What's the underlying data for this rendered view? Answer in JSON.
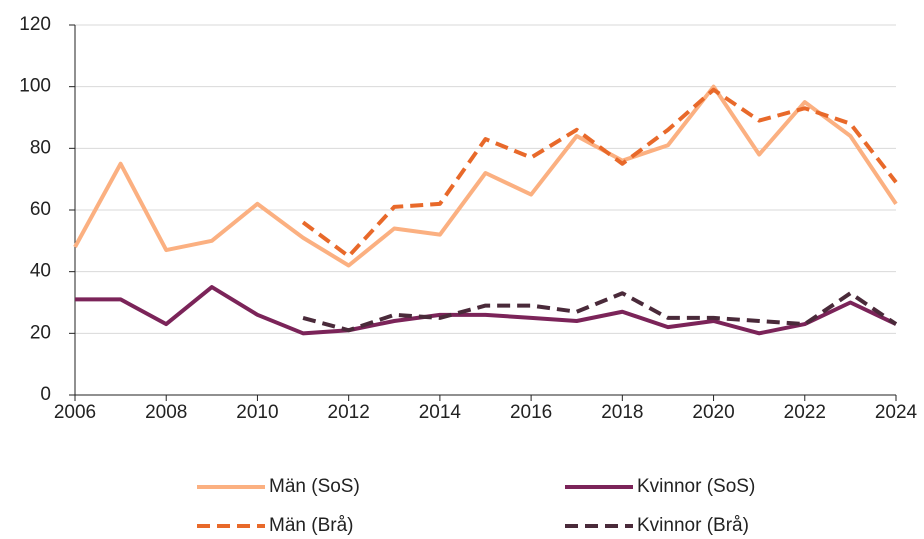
{
  "chart_data": {
    "type": "line",
    "x": [
      2006,
      2007,
      2008,
      2009,
      2010,
      2011,
      2012,
      2013,
      2014,
      2015,
      2016,
      2017,
      2018,
      2019,
      2020,
      2021,
      2022,
      2023,
      2024
    ],
    "series": [
      {
        "name": "Män (SoS)",
        "color": "#fbb081",
        "dashed": false,
        "values": [
          48,
          75,
          47,
          50,
          62,
          51,
          42,
          54,
          52,
          72,
          65,
          84,
          76,
          81,
          100,
          78,
          95,
          84,
          62
        ]
      },
      {
        "name": "Kvinnor (SoS)",
        "color": "#7b2459",
        "dashed": false,
        "values": [
          31,
          31,
          23,
          35,
          26,
          20,
          21,
          24,
          26,
          26,
          25,
          24,
          27,
          22,
          24,
          20,
          23,
          30,
          23
        ]
      },
      {
        "name": "Män (Brå)",
        "color": "#e8692a",
        "dashed": true,
        "values": [
          null,
          null,
          null,
          null,
          null,
          56,
          45,
          61,
          62,
          83,
          77,
          86,
          75,
          86,
          99,
          89,
          93,
          88,
          69
        ]
      },
      {
        "name": "Kvinnor (Brå)",
        "color": "#4a2a3a",
        "dashed": true,
        "values": [
          null,
          null,
          null,
          null,
          null,
          25,
          21,
          26,
          25,
          29,
          29,
          27,
          33,
          25,
          25,
          24,
          23,
          33,
          23
        ]
      }
    ],
    "xlim": [
      2006,
      2024
    ],
    "xticks": [
      2006,
      2008,
      2010,
      2012,
      2014,
      2016,
      2018,
      2020,
      2022,
      2024
    ],
    "ylim": [
      0,
      120
    ],
    "yticks": [
      0,
      20,
      40,
      60,
      80,
      100,
      120
    ],
    "grid": true,
    "legend": "bottom"
  }
}
